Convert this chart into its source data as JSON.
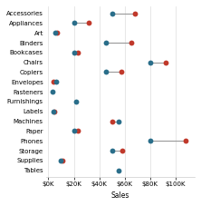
{
  "categories": [
    "Accessories",
    "Appliances",
    "Art",
    "Binders",
    "Bookcases",
    "Chairs",
    "Copiers",
    "Envelopes",
    "Fasteners",
    "Furnishings",
    "Labels",
    "Machines",
    "Paper",
    "Phones",
    "Storage",
    "Supplies",
    "Tables"
  ],
  "teal_values": [
    50000,
    20000,
    5500,
    45000,
    20000,
    80000,
    45000,
    6000,
    3000,
    22000,
    4000,
    55000,
    20000,
    80000,
    50000,
    10000,
    55000
  ],
  "red_values": [
    68000,
    32000,
    6500,
    65000,
    23000,
    92000,
    57000,
    4000,
    null,
    null,
    4800,
    50000,
    23000,
    108000,
    58000,
    11000,
    null
  ],
  "teal_color": "#2a6e8a",
  "red_color": "#c0392b",
  "line_color": "#999999",
  "bg_color": "#ffffff",
  "xlabel": "Sales",
  "xlim": [
    -2000,
    115000
  ],
  "xticks": [
    0,
    20000,
    40000,
    60000,
    80000,
    100000
  ],
  "xticklabels": [
    "$0K",
    "$20K",
    "$40K",
    "$60K",
    "$80K",
    "$100K"
  ],
  "label_fontsize": 5.5,
  "tick_fontsize": 5.0,
  "marker_size": 4.2
}
